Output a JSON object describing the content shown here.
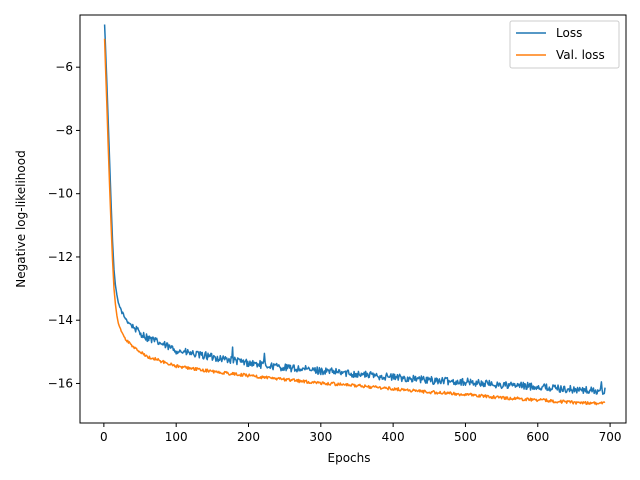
{
  "chart_data": {
    "type": "line",
    "title": "",
    "xlabel": "Epochs",
    "ylabel": "Negative log-likelihood",
    "xlim": [
      -33,
      722
    ],
    "ylim": [
      -17.25,
      -4.35
    ],
    "xticks": [
      0,
      100,
      200,
      300,
      400,
      500,
      600,
      700
    ],
    "yticks": [
      -16,
      -14,
      -12,
      -10,
      -8,
      -6
    ],
    "ytick_labels": [
      "−16",
      "−14",
      "−12",
      "−10",
      "−8",
      "−6"
    ],
    "grid": false,
    "legend_position": "top-right",
    "series": [
      {
        "name": "Loss",
        "color": "#1f77b4",
        "noise": 0.12,
        "points": [
          [
            1,
            -4.65
          ],
          [
            2,
            -5.2
          ],
          [
            4,
            -6.4
          ],
          [
            6,
            -7.7
          ],
          [
            8,
            -9.0
          ],
          [
            10,
            -10.3
          ],
          [
            12,
            -11.5
          ],
          [
            14,
            -12.4
          ],
          [
            16,
            -12.9
          ],
          [
            18,
            -13.2
          ],
          [
            20,
            -13.45
          ],
          [
            25,
            -13.75
          ],
          [
            30,
            -13.95
          ],
          [
            40,
            -14.2
          ],
          [
            50,
            -14.4
          ],
          [
            60,
            -14.55
          ],
          [
            80,
            -14.75
          ],
          [
            100,
            -14.95
          ],
          [
            130,
            -15.1
          ],
          [
            160,
            -15.2
          ],
          [
            200,
            -15.35
          ],
          [
            250,
            -15.5
          ],
          [
            300,
            -15.6
          ],
          [
            350,
            -15.7
          ],
          [
            400,
            -15.8
          ],
          [
            450,
            -15.9
          ],
          [
            500,
            -15.95
          ],
          [
            550,
            -16.05
          ],
          [
            600,
            -16.1
          ],
          [
            650,
            -16.2
          ],
          [
            693,
            -16.25
          ]
        ],
        "spikes": [
          [
            178,
            -14.85
          ],
          [
            141,
            -15.0
          ],
          [
            222,
            -15.05
          ],
          [
            688,
            -15.95
          ]
        ]
      },
      {
        "name": "Val. loss",
        "color": "#ff7f0e",
        "noise": 0.05,
        "points": [
          [
            1,
            -5.1
          ],
          [
            2,
            -5.8
          ],
          [
            4,
            -7.1
          ],
          [
            6,
            -8.5
          ],
          [
            8,
            -9.8
          ],
          [
            10,
            -11.0
          ],
          [
            12,
            -12.1
          ],
          [
            14,
            -13.0
          ],
          [
            16,
            -13.5
          ],
          [
            18,
            -13.85
          ],
          [
            20,
            -14.1
          ],
          [
            25,
            -14.4
          ],
          [
            30,
            -14.6
          ],
          [
            40,
            -14.85
          ],
          [
            50,
            -15.0
          ],
          [
            60,
            -15.15
          ],
          [
            80,
            -15.3
          ],
          [
            100,
            -15.45
          ],
          [
            130,
            -15.55
          ],
          [
            160,
            -15.65
          ],
          [
            200,
            -15.75
          ],
          [
            250,
            -15.88
          ],
          [
            300,
            -15.98
          ],
          [
            350,
            -16.07
          ],
          [
            400,
            -16.17
          ],
          [
            450,
            -16.27
          ],
          [
            500,
            -16.35
          ],
          [
            550,
            -16.45
          ],
          [
            600,
            -16.52
          ],
          [
            650,
            -16.6
          ],
          [
            693,
            -16.63
          ]
        ],
        "spikes": []
      }
    ]
  }
}
